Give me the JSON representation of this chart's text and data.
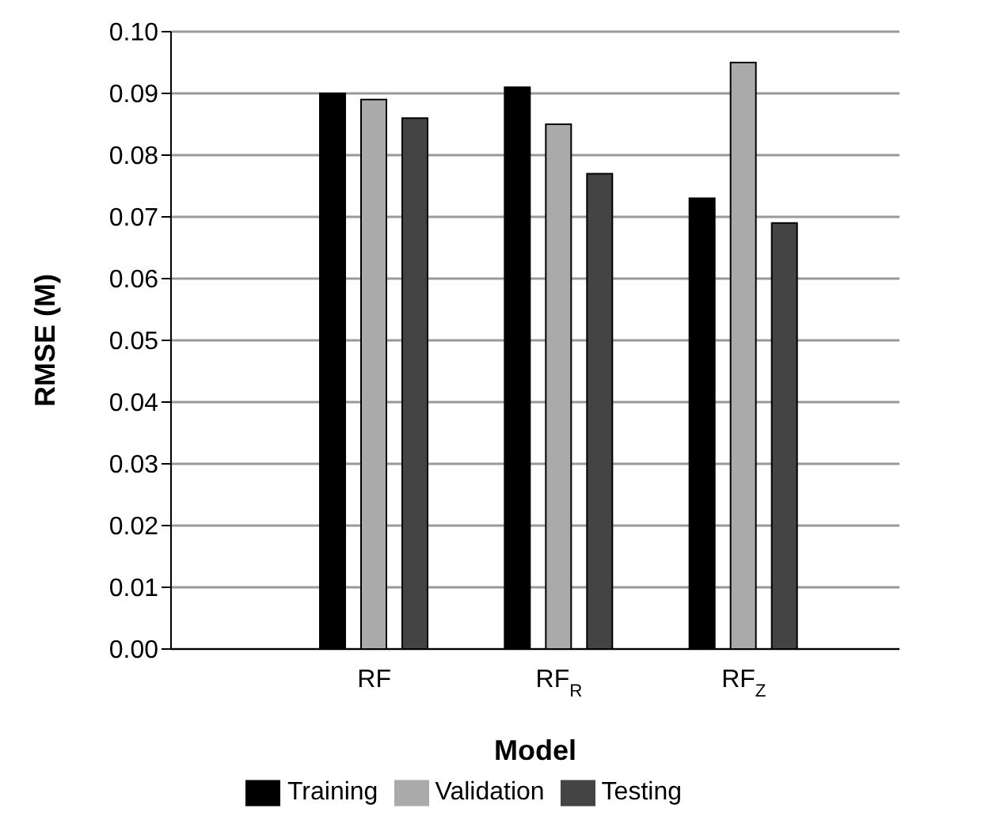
{
  "chart_data": {
    "type": "bar",
    "xlabel": "Model",
    "ylabel": "RMSE (M)",
    "categories": [
      "RF",
      "RF$_{R}$",
      "RF$_{Z}$"
    ],
    "series": [
      {
        "name": "Training",
        "color": "#000000",
        "values": [
          0.09,
          0.091,
          0.073
        ]
      },
      {
        "name": "Validation",
        "color": "#aaaaaa",
        "values": [
          0.089,
          0.085,
          0.095
        ]
      },
      {
        "name": "Testing",
        "color": "#444444",
        "values": [
          0.086,
          0.077,
          0.069
        ]
      }
    ],
    "ylim": [
      0,
      0.1
    ],
    "yticks": [
      {
        "value": 0,
        "label": "0.00"
      },
      {
        "value": 0.01,
        "label": "0.01"
      },
      {
        "value": 0.02,
        "label": "0.02"
      },
      {
        "value": 0.03,
        "label": "0.03"
      },
      {
        "value": 0.04,
        "label": "0.04"
      },
      {
        "value": 0.05,
        "label": "0.05"
      },
      {
        "value": 0.06,
        "label": "0.06"
      },
      {
        "value": 0.07,
        "label": "0.07"
      },
      {
        "value": 0.08,
        "label": "0.08"
      },
      {
        "value": 0.09,
        "label": "0.09"
      },
      {
        "value": 0.1,
        "label": "0.10"
      }
    ],
    "grid": "y",
    "legend": "bottom"
  }
}
